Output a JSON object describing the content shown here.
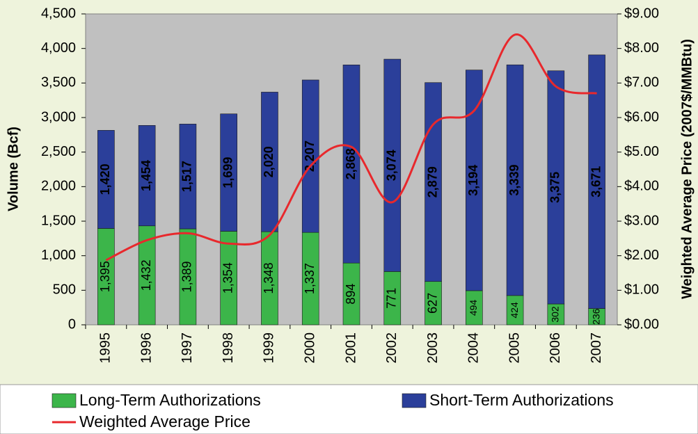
{
  "chart_data": {
    "type": "bar",
    "stacked": true,
    "y_label": "Volume (Bcf)",
    "y2_label": "Weighted Average Price (2007$/MMBtu)",
    "categories": [
      "1995",
      "1996",
      "1997",
      "1998",
      "1999",
      "2000",
      "2001",
      "2002",
      "2003",
      "2004",
      "2005",
      "2006",
      "2007"
    ],
    "series": [
      {
        "name": "Long-Term Authorizations",
        "color": "#3cb54a",
        "values": [
          1395,
          1432,
          1389,
          1354,
          1348,
          1337,
          894,
          771,
          627,
          494,
          424,
          302,
          236
        ],
        "value_labels": [
          "1,395",
          "1,432",
          "1,389",
          "1,354",
          "1,348",
          "1,337",
          "894",
          "771",
          "627",
          "494",
          "424",
          "302",
          "236"
        ]
      },
      {
        "name": "Short-Term Authorizations",
        "color": "#2b3f9a",
        "values": [
          1420,
          1454,
          1517,
          1699,
          2020,
          2207,
          2868,
          3074,
          2879,
          3194,
          3339,
          3375,
          3671
        ],
        "value_labels": [
          "1,420",
          "1,454",
          "1,517",
          "1,699",
          "2,020",
          "2,207",
          "2,868",
          "3,074",
          "2,879",
          "3,194",
          "3,339",
          "3,375",
          "3,671"
        ]
      },
      {
        "name": "Weighted Average Price",
        "color": "#e8282c",
        "type": "line",
        "axis": "y2",
        "values": [
          1.87,
          2.45,
          2.65,
          2.35,
          2.6,
          4.6,
          5.15,
          3.55,
          5.8,
          6.2,
          8.4,
          6.9,
          6.7
        ]
      }
    ],
    "ylim": [
      0,
      4500
    ],
    "yticks": [
      0,
      500,
      {
        "value": 1000,
        "label": "1,000"
      },
      {
        "value": 1500,
        "label": "1,500"
      },
      {
        "value": 2000,
        "label": "2,000"
      },
      {
        "value": 2500,
        "label": "2,500"
      },
      {
        "value": 3000,
        "label": "3,000"
      },
      {
        "value": 3500,
        "label": "3,500"
      },
      {
        "value": 4000,
        "label": "4,000"
      },
      {
        "value": 4500,
        "label": "4,500"
      }
    ],
    "y2lim": [
      0,
      9
    ],
    "y2ticks": [
      {
        "value": 0,
        "label": "$0.00"
      },
      {
        "value": 1,
        "label": "$1.00"
      },
      {
        "value": 2,
        "label": "$2.00"
      },
      {
        "value": 3,
        "label": "$3.00"
      },
      {
        "value": 4,
        "label": "$4.00"
      },
      {
        "value": 5,
        "label": "$5.00"
      },
      {
        "value": 6,
        "label": "$6.00"
      },
      {
        "value": 7,
        "label": "$7.00"
      },
      {
        "value": 8,
        "label": "$8.00"
      },
      {
        "value": 9,
        "label": "$9.00"
      }
    ],
    "grid": false,
    "legend": "bottom"
  }
}
